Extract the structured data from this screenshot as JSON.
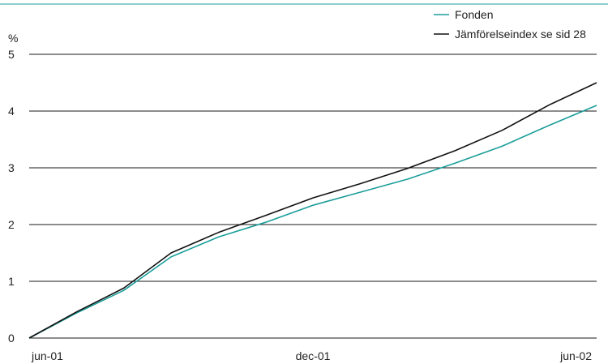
{
  "chart_data": {
    "type": "line",
    "title": "",
    "xlabel": "",
    "ylabel": "%",
    "x_tick_labels": [
      "jun-01",
      "dec-01",
      "jun-02"
    ],
    "y_ticks": [
      0,
      1,
      2,
      3,
      4,
      5
    ],
    "ylim": [
      0,
      5
    ],
    "x": [
      0,
      1,
      2,
      3,
      4,
      5,
      6,
      7,
      8,
      9,
      10,
      11,
      12
    ],
    "grid": true,
    "legend_position": "top-right",
    "series": [
      {
        "name": "Fonden",
        "color": "#1a9e9a",
        "values": [
          0.0,
          0.44,
          0.84,
          1.43,
          1.78,
          2.04,
          2.34,
          2.57,
          2.8,
          3.08,
          3.38,
          3.75,
          4.1
        ]
      },
      {
        "name": "Jämförelseindex se sid 28",
        "color": "#111111",
        "values": [
          0.0,
          0.46,
          0.88,
          1.5,
          1.86,
          2.16,
          2.47,
          2.72,
          2.99,
          3.3,
          3.66,
          4.11,
          4.5
        ]
      }
    ]
  },
  "colors": {
    "title_rule": "#1a9e9a",
    "grid": "#1a1a1a"
  }
}
